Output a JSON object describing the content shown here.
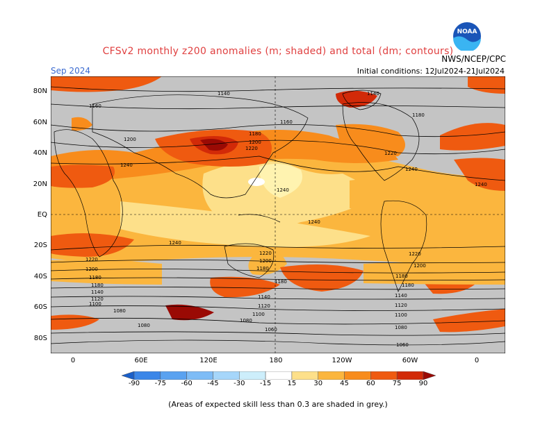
{
  "title": "CFSv2 monthly z200 anomalies (m; shaded) and total (dm; contours)",
  "period": "Sep 2024",
  "agency": "NWS/NCEP/CPC",
  "initial_conditions": "Initial conditions: 12Jul2024-21Jul2024",
  "logo_text": "NOAA",
  "lat_labels": [
    "80N",
    "60N",
    "40N",
    "20N",
    "EQ",
    "20S",
    "40S",
    "60S",
    "80S"
  ],
  "lon_labels": [
    "0",
    "60E",
    "120E",
    "180",
    "120W",
    "60W",
    "0"
  ],
  "colorbar": {
    "labels": [
      "-90",
      "-75",
      "-60",
      "-45",
      "-30",
      "-15",
      "15",
      "30",
      "45",
      "60",
      "75",
      "90"
    ],
    "colors": [
      "#1a5fc8",
      "#3a86e8",
      "#5aa2f0",
      "#7ebcf6",
      "#a6d6fa",
      "#cdeefb",
      "#ffffff",
      "#fde08a",
      "#fbb63e",
      "#f88c1c",
      "#ef5a10",
      "#d22a08",
      "#9a0a04"
    ]
  },
  "note": "(Areas of expected skill less than 0.3 are shaded in grey.)",
  "contour_labels": [
    "1140",
    "1160",
    "1180",
    "1200",
    "1220",
    "1240",
    "1100",
    "1120",
    "1080",
    "1060"
  ],
  "colors": {
    "grey": "#c4c4c4",
    "title": "#e04040",
    "period": "#3a6ad0"
  }
}
